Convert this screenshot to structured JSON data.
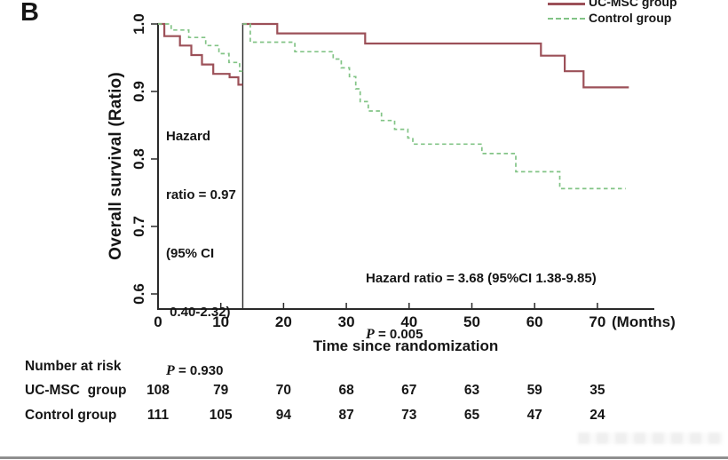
{
  "panel_label": "B",
  "chart_data": {
    "type": "line",
    "subtype": "kaplan-meier-step",
    "title": "",
    "xlabel": "Time since randomization",
    "xunit": "(Months)",
    "ylabel": "Overall survival (Ratio)",
    "xlim": [
      0,
      79
    ],
    "ylim": [
      0.58,
      1.0
    ],
    "xticks": [
      0,
      10,
      20,
      30,
      40,
      50,
      60,
      70
    ],
    "yticks": [
      "1.0",
      "0.9",
      "0.8",
      "0.7",
      "0.6"
    ],
    "grid": false,
    "legend_position": "top-right",
    "landmark_month": 13.5,
    "axis_color": "#2a2a2a",
    "landmark_color": "#2a2a2a",
    "series": [
      {
        "name": "UC-MSC group",
        "color": "#9c5058",
        "style": "solid",
        "width": 2.2,
        "segments": [
          [
            [
              0,
              1.0
            ],
            [
              1,
              0.982
            ],
            [
              3.5,
              0.968
            ],
            [
              5.3,
              0.954
            ],
            [
              7,
              0.94
            ],
            [
              8.8,
              0.926
            ],
            [
              11.4,
              0.921
            ],
            [
              12.8,
              0.91
            ],
            [
              13.5,
              0.91
            ]
          ],
          [
            [
              13.5,
              1.0
            ],
            [
              19,
              0.986
            ],
            [
              33,
              0.971
            ],
            [
              61,
              0.953
            ],
            [
              64.8,
              0.93
            ],
            [
              67.8,
              0.906
            ],
            [
              75,
              0.906
            ]
          ]
        ]
      },
      {
        "name": "Control group",
        "color": "#82c486",
        "style": "dashed",
        "width": 1.7,
        "segments": [
          [
            [
              0,
              1.0
            ],
            [
              2.1,
              0.991
            ],
            [
              4.9,
              0.98
            ],
            [
              7.6,
              0.968
            ],
            [
              9.7,
              0.956
            ],
            [
              11.3,
              0.943
            ],
            [
              13,
              0.93
            ],
            [
              13.5,
              0.93
            ]
          ],
          [
            [
              13.5,
              1.0
            ],
            [
              14.7,
              0.973
            ],
            [
              21.8,
              0.959
            ],
            [
              27.9,
              0.948
            ],
            [
              29.2,
              0.935
            ],
            [
              30.5,
              0.922
            ],
            [
              31.5,
              0.904
            ],
            [
              32.2,
              0.885
            ],
            [
              33.5,
              0.871
            ],
            [
              35.6,
              0.857
            ],
            [
              37.7,
              0.844
            ],
            [
              39.8,
              0.831
            ],
            [
              40.6,
              0.822
            ],
            [
              51.6,
              0.808
            ],
            [
              57,
              0.781
            ],
            [
              64,
              0.756
            ],
            [
              74.5,
              0.756
            ]
          ]
        ]
      }
    ]
  },
  "legend": {
    "items": [
      {
        "label": "UC-MSC group",
        "color": "#9c5058",
        "style": "solid"
      },
      {
        "label": "Control group",
        "color": "#82c486",
        "style": "dashed"
      }
    ]
  },
  "annotations": {
    "landmark": {
      "lines": [
        "Hazard",
        "ratio = 0.97",
        "(95% CI",
        " 0.40-2.32)"
      ],
      "p_label": "P",
      "p_rest": " = 0.930"
    },
    "post": {
      "line1": "Hazard ratio = 3.68 (95%CI 1.38-9.85)",
      "p_label": "P",
      "p_rest": " = 0.005"
    }
  },
  "risk_table": {
    "title": "Number at risk",
    "rows": [
      {
        "label": "UC-MSC  group",
        "values": [
          108,
          79,
          70,
          68,
          67,
          63,
          59,
          35
        ]
      },
      {
        "label": "Control group",
        "values": [
          111,
          105,
          94,
          87,
          73,
          65,
          47,
          24
        ]
      }
    ]
  }
}
